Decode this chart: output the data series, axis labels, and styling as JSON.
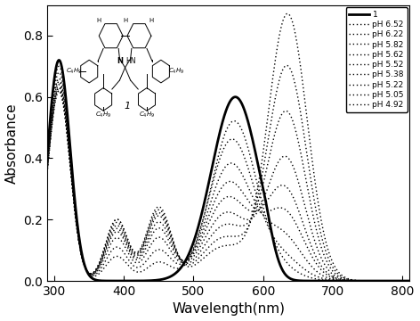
{
  "xlim": [
    290,
    810
  ],
  "ylim": [
    0.0,
    0.9
  ],
  "xlabel": "Wavelength(nm)",
  "ylabel": "Absorbance",
  "legend_labels": [
    "1",
    "pH 6.52",
    "pH 6.22",
    "pH 5.82",
    "pH 5.62",
    "pH 5.52",
    "pH 5.38",
    "pH 5.22",
    "pH 5.05",
    "pH 4.92"
  ],
  "xticks": [
    300,
    400,
    500,
    600,
    700,
    800
  ],
  "yticks": [
    0.0,
    0.2,
    0.4,
    0.6,
    0.8
  ],
  "curve1_color": "#000000",
  "dotted_color": "#000000",
  "background": "#ffffff",
  "figsize": [
    4.72,
    3.6
  ],
  "dpi": 100
}
